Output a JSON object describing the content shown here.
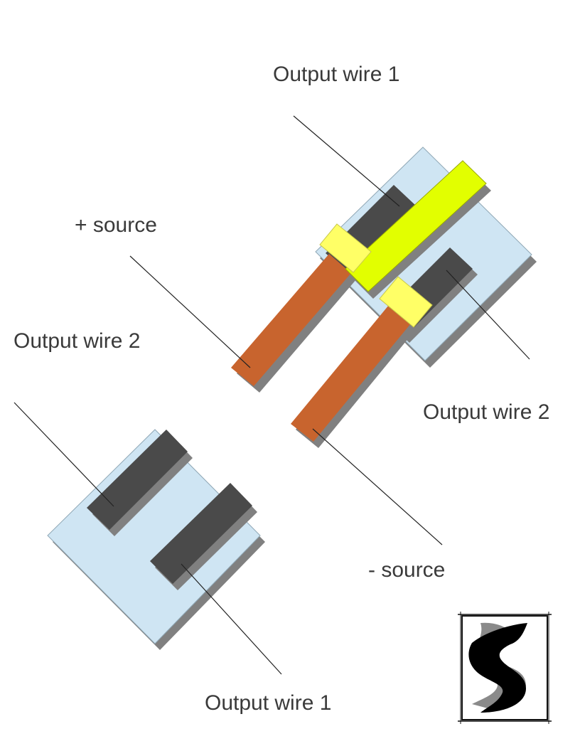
{
  "labels": {
    "top_output_wire_1": "Output wire 1",
    "plus_source": "+ source",
    "left_output_wire_2": "Output wire 2",
    "right_output_wire_2": "Output wire 2",
    "minus_source": "- source",
    "bottom_output_wire_1": "Output wire 1"
  },
  "colors": {
    "text": "#3a3a3a",
    "leader_line": "#222222",
    "substrate": "#cfe5f3",
    "substrate_edge": "#8fa7b5",
    "shadow": "#808080",
    "terminal_pad": "#4a4a4a",
    "source_wire": "#c8642e",
    "bridge_bar": "#e2ff00",
    "clamp_pad": "#ffff66"
  },
  "logo": {
    "description_icon": "stylized-s-logo-icon"
  }
}
